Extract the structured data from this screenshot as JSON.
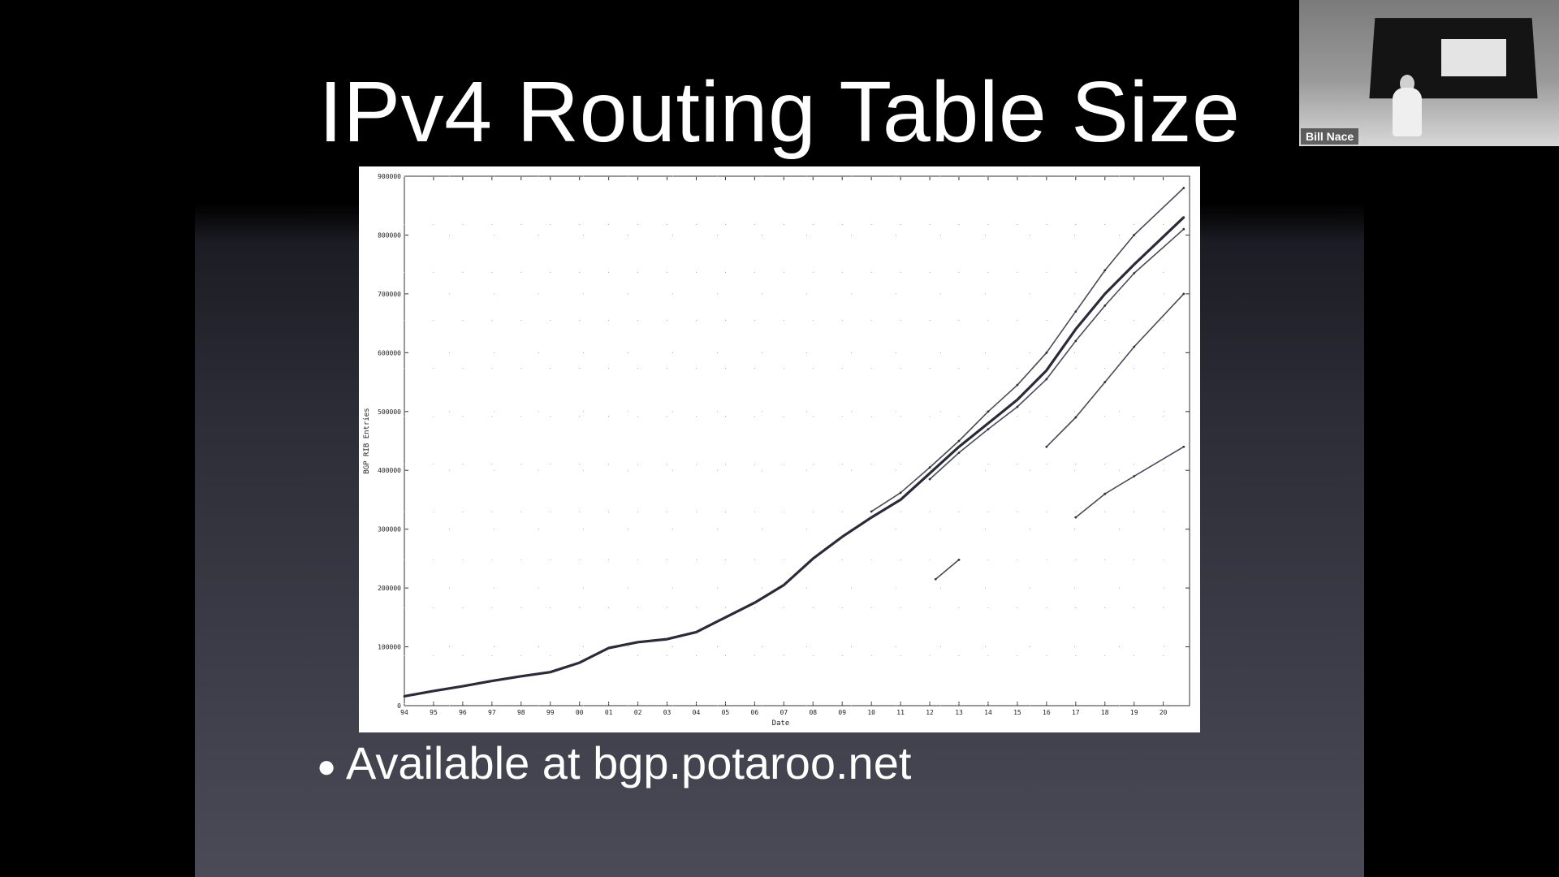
{
  "slide": {
    "title": "IPv4 Routing Table Size",
    "bullets": [
      "Available at bgp.potaroo.net"
    ],
    "bullet_icon": "bullet-dot"
  },
  "video_tile": {
    "participant_name": "Bill Nace"
  },
  "chart_data": {
    "type": "line",
    "title": "",
    "xlabel": "Date",
    "ylabel": "BGP RIB Entries",
    "xlim": [
      1994,
      2020.9
    ],
    "ylim": [
      0,
      900000
    ],
    "grid": "dotted",
    "x_tick_labels": [
      "94",
      "95",
      "96",
      "97",
      "98",
      "99",
      "00",
      "01",
      "02",
      "03",
      "04",
      "05",
      "06",
      "07",
      "08",
      "09",
      "10",
      "11",
      "12",
      "13",
      "14",
      "15",
      "16",
      "17",
      "18",
      "19",
      "20"
    ],
    "y_tick_labels": [
      "0",
      "100000",
      "200000",
      "300000",
      "400000",
      "500000",
      "600000",
      "700000",
      "800000",
      "900000"
    ],
    "series": [
      {
        "x": [
          1994.0,
          1995.0,
          1996.0,
          1997.0,
          1998.0,
          1999.0,
          2000.0,
          2001.0,
          2002.0,
          2003.0,
          2004.0,
          2005.0,
          2006.0,
          2007.0,
          2008.0,
          2009.0,
          2010.0,
          2011.0,
          2012.0,
          2013.0,
          2014.0,
          2015.0,
          2016.0,
          2017.0,
          2018.0,
          2019.0,
          2020.7
        ],
        "y": [
          16000,
          25000,
          33000,
          42000,
          50000,
          57000,
          73000,
          98000,
          108000,
          113000,
          125000,
          150000,
          175000,
          205000,
          250000,
          287000,
          320000,
          350000,
          395000,
          440000,
          480000,
          520000,
          570000,
          640000,
          700000,
          750000,
          830000
        ]
      },
      {
        "x": [
          2010.0,
          2011.0,
          2012.0,
          2013.0,
          2014.0,
          2015.0,
          2016.0,
          2017.0,
          2018.0,
          2019.0,
          2020.7
        ],
        "y": [
          330000,
          362000,
          405000,
          450000,
          500000,
          545000,
          600000,
          670000,
          740000,
          800000,
          880000
        ]
      },
      {
        "x": [
          2012.0,
          2013.0,
          2014.0,
          2015.0,
          2016.0,
          2017.0,
          2018.0,
          2019.0,
          2020.7
        ],
        "y": [
          385000,
          430000,
          470000,
          508000,
          555000,
          620000,
          680000,
          735000,
          810000
        ]
      },
      {
        "x": [
          2016.0,
          2017.0,
          2018.0,
          2019.0,
          2020.7
        ],
        "y": [
          440000,
          490000,
          550000,
          610000,
          700000
        ]
      },
      {
        "x": [
          2012.2,
          2013.0
        ],
        "y": [
          215000,
          248000
        ]
      },
      {
        "x": [
          2017.0,
          2018.0,
          2019.0,
          2020.7
        ],
        "y": [
          320000,
          360000,
          390000,
          440000
        ]
      }
    ]
  }
}
